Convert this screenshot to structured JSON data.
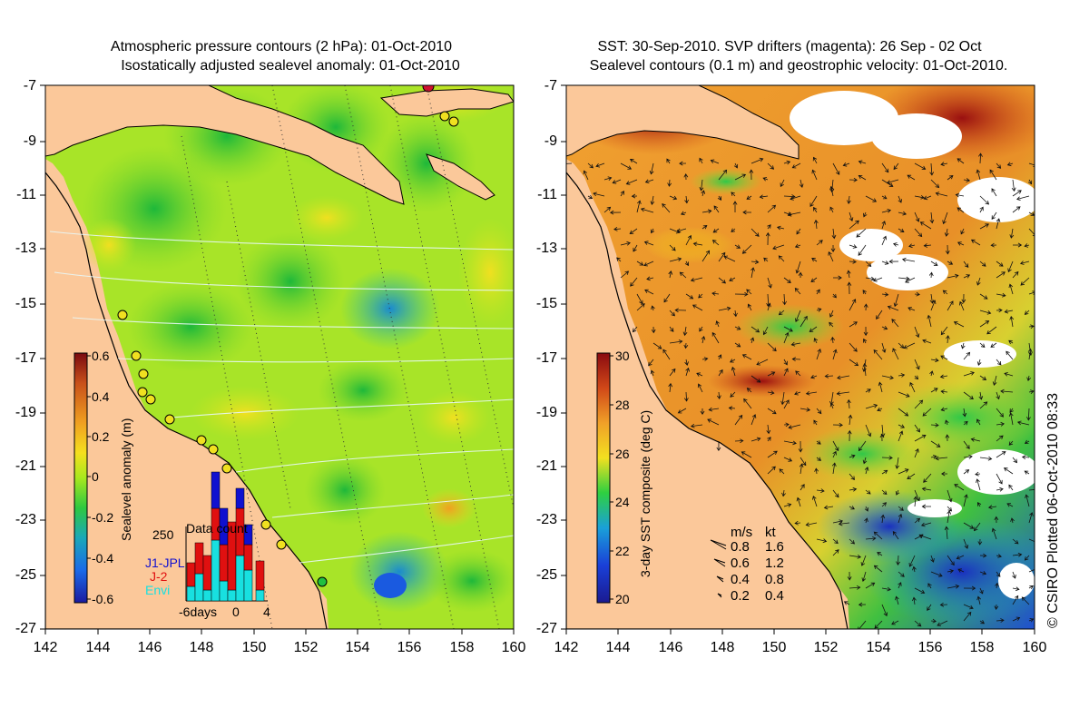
{
  "left_panel": {
    "title_line1": "Atmospheric pressure contours (2 hPa): 01-Oct-2010",
    "title_line2": "Isostatically adjusted sealevel anomaly: 01-Oct-2010",
    "y_ticks": [
      "-7",
      "-9",
      "-11",
      "-13",
      "-15",
      "-17",
      "-19",
      "-21",
      "-23",
      "-25",
      "-27"
    ],
    "x_ticks": [
      "142",
      "144",
      "146",
      "148",
      "150",
      "152",
      "154",
      "156",
      "158",
      "160"
    ],
    "colorbar": {
      "title": "Sealevel anomaly (m)",
      "ticks": [
        "0.6",
        "0.4",
        "0.2",
        "0",
        "-0.2",
        "-0.4",
        "-0.6"
      ],
      "colors": [
        "#7a0a10",
        "#c8501a",
        "#f0a020",
        "#f5e01e",
        "#a8e81e",
        "#2ec840",
        "#1aa8b8",
        "#1a6ae8",
        "#1a1aa0"
      ]
    },
    "data_count": {
      "title": "Data count",
      "y_tick": "250",
      "x_ticks": [
        "-6days",
        "0",
        "4"
      ],
      "legend": [
        {
          "label": "J1-JPL",
          "color": "#1010d0"
        },
        {
          "label": "J-2",
          "color": "#e01010"
        },
        {
          "label": "Envi",
          "color": "#18e0e0"
        }
      ]
    }
  },
  "right_panel": {
    "title_line1": "SST: 30-Sep-2010. SVP drifters (magenta): 26 Sep - 02 Oct",
    "title_line2": "Sealevel contours (0.1 m) and geostrophic velocity: 01-Oct-2010.",
    "y_ticks": [
      "-7",
      "-9",
      "-11",
      "-13",
      "-15",
      "-17",
      "-19",
      "-21",
      "-23",
      "-25",
      "-27"
    ],
    "x_ticks": [
      "142",
      "144",
      "146",
      "148",
      "150",
      "152",
      "154",
      "156",
      "158",
      "160"
    ],
    "colorbar": {
      "title": "3-day SST composite (deg C)",
      "ticks": [
        "30",
        "28",
        "26",
        "24",
        "22",
        "20"
      ],
      "colors": [
        "#8a0a10",
        "#d04818",
        "#f0a028",
        "#f2e020",
        "#2ed040",
        "#1aa0d8",
        "#1a40d8",
        "#1a1a90"
      ]
    },
    "velocity_key": {
      "header_ms": "m/s",
      "header_kt": "kt",
      "rows": [
        {
          "ms": "0.8",
          "kt": "1.6"
        },
        {
          "ms": "0.6",
          "kt": "1.2"
        },
        {
          "ms": "0.4",
          "kt": "0.8"
        },
        {
          "ms": "0.2",
          "kt": "0.4"
        }
      ]
    }
  },
  "credit": "© CSIRO Plotted 06-Oct-2010 08:33",
  "colors": {
    "land": "#fbc89a",
    "sla_background": "#a8e428",
    "sst_background": "#e8a83a"
  }
}
